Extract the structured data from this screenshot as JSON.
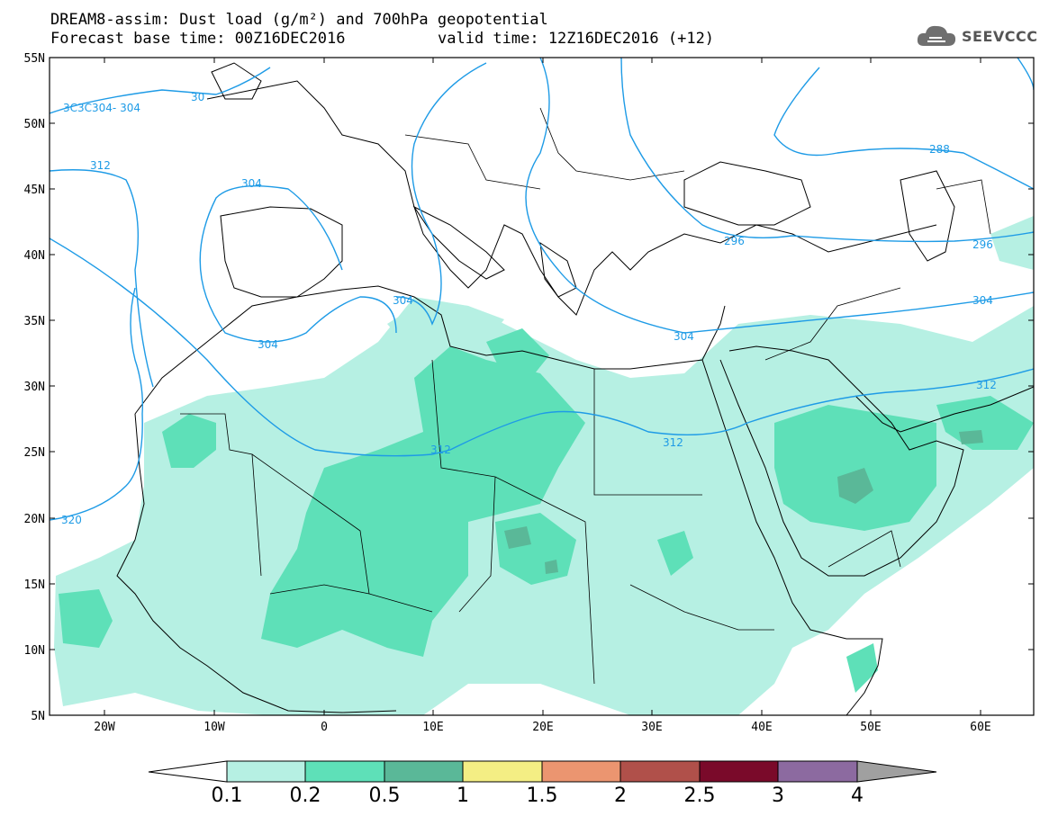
{
  "title": {
    "line1": "DREAM8-assim: Dust load (g/m²) and 700hPa geopotential",
    "line2_left": "Forecast base time: 00Z16DEC2016",
    "line2_right": "valid time: 12Z16DEC2016 (+12)"
  },
  "logo": {
    "icon": "cloud-icon",
    "text": "SEEVCCC"
  },
  "axes": {
    "lat_labels": [
      "55N",
      "50N",
      "45N",
      "40N",
      "35N",
      "30N",
      "25N",
      "20N",
      "15N",
      "10N",
      "5N"
    ],
    "lon_labels": [
      "20W",
      "10W",
      "0",
      "10E",
      "20E",
      "30E",
      "40E",
      "50E",
      "60E"
    ]
  },
  "contours": {
    "color": "#1e9be6",
    "labels": [
      {
        "text": "3C3C304- 304"
      },
      {
        "text": "30"
      },
      {
        "text": "312"
      },
      {
        "text": "304"
      },
      {
        "text": "304"
      },
      {
        "text": "304"
      },
      {
        "text": "288"
      },
      {
        "text": "296"
      },
      {
        "text": "296"
      },
      {
        "text": "304"
      },
      {
        "text": "304"
      },
      {
        "text": "312"
      },
      {
        "text": "312"
      },
      {
        "text": "312"
      },
      {
        "text": "320"
      }
    ]
  },
  "colorbar": {
    "labels": [
      "0.1",
      "0.2",
      "0.5",
      "1",
      "1.5",
      "2",
      "2.5",
      "3",
      "4"
    ],
    "colors": [
      "#ffffff",
      "#b6f0e3",
      "#5ee0b8",
      "#5ab898",
      "#f4ee84",
      "#eb9570",
      "#b0504a",
      "#7a0a2a",
      "#8c6aa0",
      "#a0a0a0"
    ]
  }
}
